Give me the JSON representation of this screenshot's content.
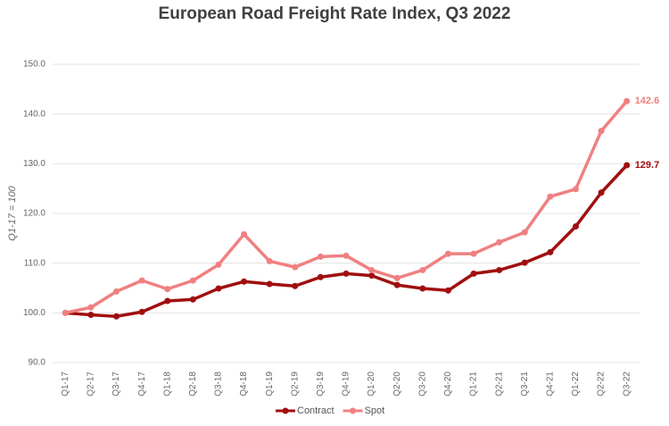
{
  "chart_data": {
    "type": "line",
    "title": "European Road Freight Rate Index, Q3 2022",
    "y_label": "Q1-17 = 100",
    "categories": [
      "Q1-17",
      "Q2-17",
      "Q3-17",
      "Q4-17",
      "Q1-18",
      "Q2-18",
      "Q3-18",
      "Q4-18",
      "Q1-19",
      "Q2-19",
      "Q3-19",
      "Q4-19",
      "Q1-20",
      "Q2-20",
      "Q3-20",
      "Q4-20",
      "Q1-21",
      "Q2-21",
      "Q3-21",
      "Q4-21",
      "Q1-22",
      "Q2-22",
      "Q3-22"
    ],
    "series": [
      {
        "name": "Contract",
        "color": "#a00f0f",
        "values": [
          100,
          99.6,
          99.3,
          100.2,
          102.4,
          102.7,
          104.9,
          106.3,
          105.8,
          105.4,
          107.2,
          107.9,
          107.5,
          105.6,
          104.9,
          104.5,
          107.9,
          108.6,
          110.1,
          112.2,
          117.4,
          124.2,
          129.7
        ]
      },
      {
        "name": "Spot",
        "color": "#f08080",
        "values": [
          100,
          101.1,
          104.3,
          106.5,
          104.8,
          106.5,
          109.7,
          115.8,
          110.4,
          109.2,
          111.3,
          111.5,
          108.6,
          107.0,
          108.6,
          111.9,
          111.9,
          114.2,
          116.2,
          123.4,
          124.9,
          136.6,
          142.6
        ]
      }
    ],
    "ylim": [
      90,
      150
    ],
    "yticks": [
      {
        "value": 90,
        "label": "90.0"
      },
      {
        "value": 100,
        "label": "100.0"
      },
      {
        "value": 110,
        "label": "110.0"
      },
      {
        "value": 120,
        "label": "120.0"
      },
      {
        "value": 130,
        "label": "130.0"
      },
      {
        "value": 140,
        "label": "140.0"
      },
      {
        "value": 150,
        "label": "150.0"
      }
    ],
    "grid": true,
    "legend": "bottom"
  }
}
